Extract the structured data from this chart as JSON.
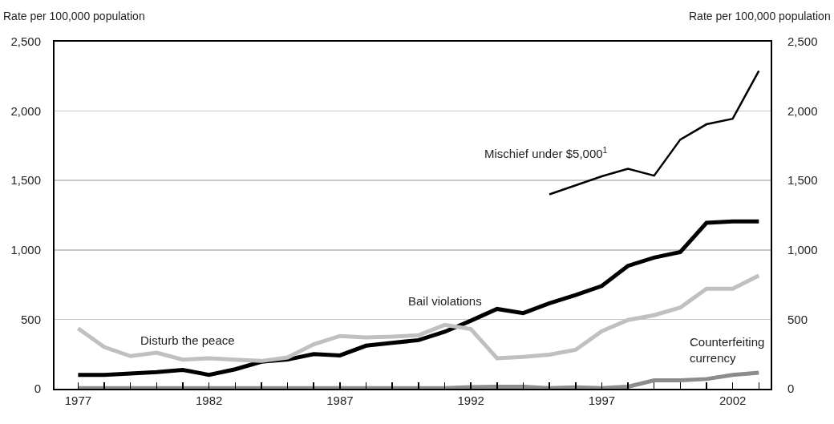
{
  "chart_data": {
    "type": "line",
    "ylabel": "Rate per 100,000 population",
    "y2label": "Rate per 100,000 population",
    "x": [
      1977,
      1978,
      1979,
      1980,
      1981,
      1982,
      1983,
      1984,
      1985,
      1986,
      1987,
      1988,
      1989,
      1990,
      1991,
      1992,
      1993,
      1994,
      1995,
      1996,
      1997,
      1998,
      1999,
      2000,
      2001,
      2002,
      2003
    ],
    "series": [
      {
        "name": "Mischief under $5,000$^{1}$",
        "color": "#000000",
        "values": [
          null,
          null,
          null,
          null,
          null,
          null,
          null,
          null,
          null,
          null,
          null,
          null,
          null,
          null,
          null,
          null,
          null,
          null,
          1400,
          1465,
          1530,
          1585,
          1535,
          1795,
          1905,
          1945,
          2290
        ]
      },
      {
        "name": "Bail violations",
        "color": "#000000",
        "values": [
          100,
          100,
          110,
          120,
          135,
          100,
          140,
          195,
          210,
          250,
          240,
          310,
          330,
          350,
          410,
          490,
          575,
          545,
          615,
          675,
          740,
          885,
          945,
          985,
          1195,
          1205,
          1205
        ]
      },
      {
        "name": "Disturb the peace",
        "color": "#c0c0c0",
        "values": [
          435,
          300,
          235,
          260,
          210,
          220,
          210,
          200,
          225,
          320,
          380,
          370,
          375,
          385,
          460,
          430,
          220,
          230,
          245,
          280,
          415,
          495,
          530,
          585,
          720,
          720,
          815
        ]
      },
      {
        "name": "Counterfeiting currency",
        "color": "#8c8c8c",
        "values": [
          5,
          5,
          5,
          5,
          5,
          5,
          5,
          5,
          5,
          5,
          5,
          5,
          5,
          5,
          5,
          12,
          15,
          15,
          5,
          10,
          5,
          15,
          60,
          60,
          70,
          100,
          115
        ]
      }
    ],
    "xlim": [
      1976.1,
      2003.45
    ],
    "xticks": [
      1977,
      {
        "value": 1978,
        "label": null
      },
      {
        "value": 1979,
        "label": null
      },
      {
        "value": 1980,
        "label": null
      },
      {
        "value": 1981,
        "label": null
      },
      1982,
      {
        "value": 1983,
        "label": null
      },
      {
        "value": 1984,
        "label": null
      },
      {
        "value": 1985,
        "label": null
      },
      {
        "value": 1986,
        "label": null
      },
      1987,
      {
        "value": 1988,
        "label": null
      },
      {
        "value": 1989,
        "label": null
      },
      {
        "value": 1990,
        "label": null
      },
      {
        "value": 1991,
        "label": null
      },
      1992,
      {
        "value": 1993,
        "label": null
      },
      {
        "value": 1994,
        "label": null
      },
      {
        "value": 1995,
        "label": null
      },
      {
        "value": 1996,
        "label": null
      },
      1997,
      {
        "value": 1998,
        "label": null
      },
      {
        "value": 1999,
        "label": null
      },
      {
        "value": 2000,
        "label": null
      },
      {
        "value": 2001,
        "label": null
      },
      2002,
      {
        "value": 2003,
        "label": null
      }
    ],
    "ylim": [
      0,
      2500
    ],
    "yticks": [
      0,
      500,
      {
        "value": 1000,
        "label": "1,000"
      },
      {
        "value": 1500,
        "label": "1,500"
      },
      {
        "value": 2000,
        "label": "2,000"
      },
      {
        "value": 2500,
        "label": "2,500"
      }
    ],
    "y2lim": [
      0,
      2500
    ],
    "y2ticks": [
      0,
      500,
      {
        "value": 1000,
        "label": "1,000"
      },
      {
        "value": 1500,
        "label": "1,500"
      },
      {
        "value": 2000,
        "label": "2,000"
      },
      {
        "value": 2500,
        "label": "2,500"
      }
    ],
    "grid": "y",
    "legend": false,
    "marker": "none",
    "line_style": "solid"
  }
}
